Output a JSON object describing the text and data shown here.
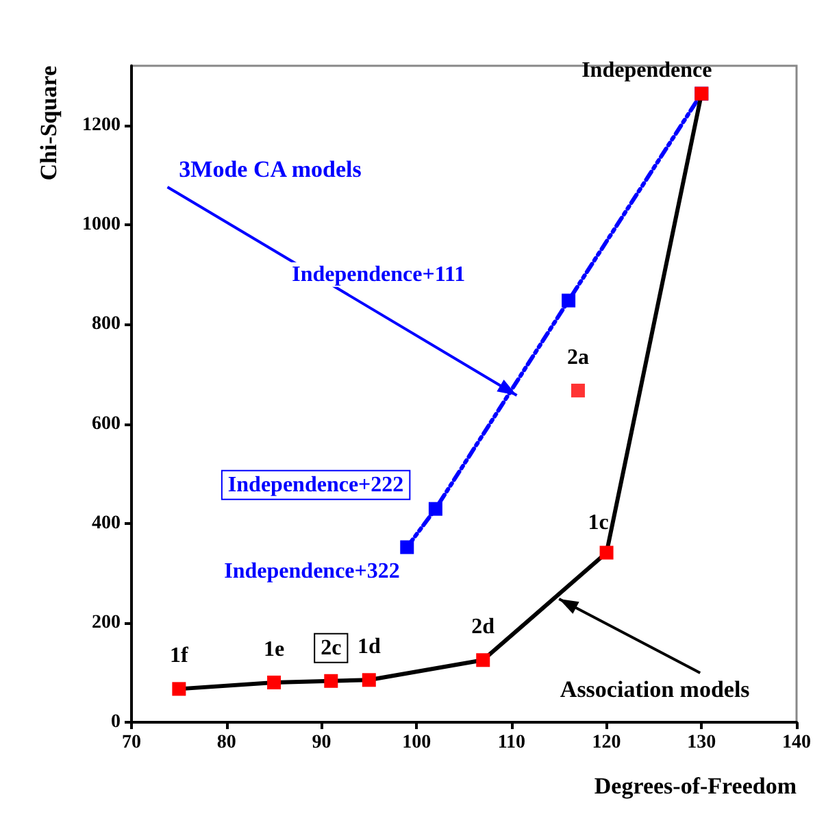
{
  "chart_data": {
    "type": "line",
    "xlabel": "Degrees-of-Freedom",
    "ylabel": "Chi-Square",
    "xlim": [
      70,
      140
    ],
    "xticks": [
      70,
      80,
      90,
      100,
      110,
      120,
      130,
      140
    ],
    "ylim": [
      0,
      1320
    ],
    "yticks": [
      0,
      200,
      400,
      600,
      800,
      1000,
      1200
    ],
    "grid": false,
    "marker": "square",
    "series": [
      {
        "color": "#000000",
        "colors": [
          "#ff0000",
          "#ff0000",
          "#ff0000",
          "#ff0000",
          "#ff0000",
          "#ff0000",
          "#ff0000"
        ],
        "line_style": "solid",
        "x": [
          75,
          85,
          91,
          95,
          107,
          120,
          130
        ],
        "values": [
          67,
          80,
          83,
          85,
          125,
          341,
          1264
        ]
      },
      {
        "color": "#0000ff",
        "line_style": "dashed",
        "x": [
          99,
          102,
          116,
          130
        ],
        "values": [
          352,
          429,
          848,
          1264
        ]
      },
      {
        "type": "scatter",
        "color": "#ff0000",
        "x": [
          117
        ],
        "values": [
          667
        ]
      }
    ],
    "annotations": [
      {
        "text": "1f",
        "x": 75,
        "y": 67
      },
      {
        "text": "1e",
        "x": 85,
        "y": 80
      },
      {
        "text": "2c",
        "x": 91,
        "y": 83
      },
      {
        "text": "1d",
        "x": 95,
        "y": 85
      },
      {
        "text": "2d",
        "x": 107,
        "y": 125
      },
      {
        "text": "1c",
        "x": 120,
        "y": 341
      },
      {
        "text": "Independence",
        "x": 130,
        "y": 1264
      },
      {
        "text": "2a",
        "x": 117,
        "y": 667
      },
      "Independence+111",
      "Independence+222",
      "Independence+322",
      "3Mode CA models",
      {
        "text": "Association models",
        "x": 115,
        "y": 248
      }
    ]
  }
}
